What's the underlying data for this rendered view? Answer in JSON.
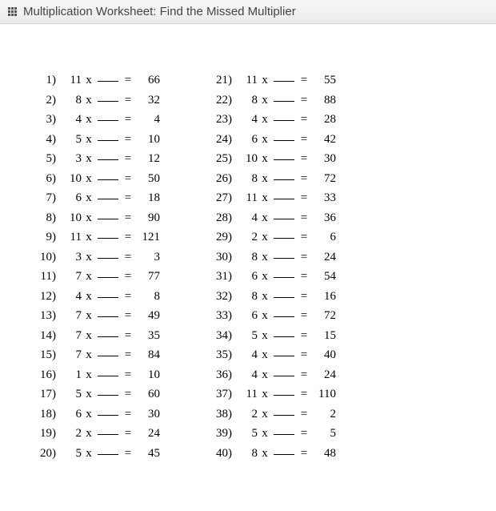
{
  "header": {
    "title": "Multiplication Worksheet: Find the Missed Multiplier"
  },
  "operator": "x",
  "equals": "=",
  "left": [
    {
      "n": "1)",
      "a": "11",
      "p": "66"
    },
    {
      "n": "2)",
      "a": "8",
      "p": "32"
    },
    {
      "n": "3)",
      "a": "4",
      "p": "4"
    },
    {
      "n": "4)",
      "a": "5",
      "p": "10"
    },
    {
      "n": "5)",
      "a": "3",
      "p": "12"
    },
    {
      "n": "6)",
      "a": "10",
      "p": "50"
    },
    {
      "n": "7)",
      "a": "6",
      "p": "18"
    },
    {
      "n": "8)",
      "a": "10",
      "p": "90"
    },
    {
      "n": "9)",
      "a": "11",
      "p": "121"
    },
    {
      "n": "10)",
      "a": "3",
      "p": "3"
    },
    {
      "n": "11)",
      "a": "7",
      "p": "77"
    },
    {
      "n": "12)",
      "a": "4",
      "p": "8"
    },
    {
      "n": "13)",
      "a": "7",
      "p": "49"
    },
    {
      "n": "14)",
      "a": "7",
      "p": "35"
    },
    {
      "n": "15)",
      "a": "7",
      "p": "84"
    },
    {
      "n": "16)",
      "a": "1",
      "p": "10"
    },
    {
      "n": "17)",
      "a": "5",
      "p": "60"
    },
    {
      "n": "18)",
      "a": "6",
      "p": "30"
    },
    {
      "n": "19)",
      "a": "2",
      "p": "24"
    },
    {
      "n": "20)",
      "a": "5",
      "p": "45"
    }
  ],
  "right": [
    {
      "n": "21)",
      "a": "11",
      "p": "55"
    },
    {
      "n": "22)",
      "a": "8",
      "p": "88"
    },
    {
      "n": "23)",
      "a": "4",
      "p": "28"
    },
    {
      "n": "24)",
      "a": "6",
      "p": "42"
    },
    {
      "n": "25)",
      "a": "10",
      "p": "30"
    },
    {
      "n": "26)",
      "a": "8",
      "p": "72"
    },
    {
      "n": "27)",
      "a": "11",
      "p": "33"
    },
    {
      "n": "28)",
      "a": "4",
      "p": "36"
    },
    {
      "n": "29)",
      "a": "2",
      "p": "6"
    },
    {
      "n": "30)",
      "a": "8",
      "p": "24"
    },
    {
      "n": "31)",
      "a": "6",
      "p": "54"
    },
    {
      "n": "32)",
      "a": "8",
      "p": "16"
    },
    {
      "n": "33)",
      "a": "6",
      "p": "72"
    },
    {
      "n": "34)",
      "a": "5",
      "p": "15"
    },
    {
      "n": "35)",
      "a": "4",
      "p": "40"
    },
    {
      "n": "36)",
      "a": "4",
      "p": "24"
    },
    {
      "n": "37)",
      "a": "11",
      "p": "110"
    },
    {
      "n": "38)",
      "a": "2",
      "p": "2"
    },
    {
      "n": "39)",
      "a": "5",
      "p": "5"
    },
    {
      "n": "40)",
      "a": "8",
      "p": "48"
    }
  ]
}
